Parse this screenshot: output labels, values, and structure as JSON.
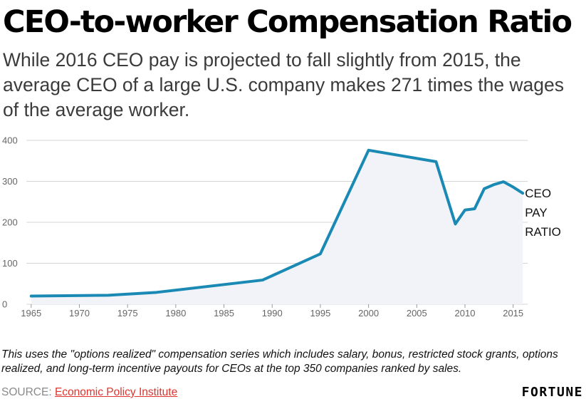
{
  "header": {
    "title": "CEO-to-worker Compensation Ratio",
    "subtitle": "While 2016 CEO pay is projected to fall slightly from 2015, the average CEO of a large U.S. company makes 271 times the wages of the average worker."
  },
  "footer": {
    "note": "This uses the \"options realized\" compensation series which includes salary, bonus, restricted stock grants, options realized, and long-term incentive payouts for CEOs at the top 350 companies ranked by sales.",
    "source_label": "SOURCE: ",
    "source_link": "Economic Policy Institute",
    "brand": "FORTUNE"
  },
  "colors": {
    "line": "#1a8ab4",
    "area": "#f1f3f8",
    "grid": "#d4d4d4",
    "source_link": "#e0342c"
  },
  "chart_data": {
    "type": "area",
    "series": [
      {
        "name": "CEO PAY RATIO",
        "label_lines": [
          "CEO",
          "PAY",
          "RATIO"
        ],
        "points": [
          [
            1965,
            20
          ],
          [
            1973,
            22
          ],
          [
            1978,
            29
          ],
          [
            1989,
            59
          ],
          [
            1995,
            123
          ],
          [
            2000,
            376
          ],
          [
            2007,
            348
          ],
          [
            2009,
            196
          ],
          [
            2010,
            230
          ],
          [
            2011,
            233
          ],
          [
            2012,
            282
          ],
          [
            2013,
            292
          ],
          [
            2014,
            299
          ],
          [
            2015,
            286
          ],
          [
            2016,
            271
          ]
        ]
      }
    ],
    "xlim": [
      1964.5,
      2016.5
    ],
    "ylim": [
      0,
      400
    ],
    "xticks": [
      1965,
      1970,
      1975,
      1980,
      1985,
      1990,
      1995,
      2000,
      2005,
      2010,
      2015
    ],
    "yticks": [
      0,
      100,
      200,
      300,
      400
    ],
    "grid": true,
    "xlabel": "",
    "ylabel": ""
  }
}
